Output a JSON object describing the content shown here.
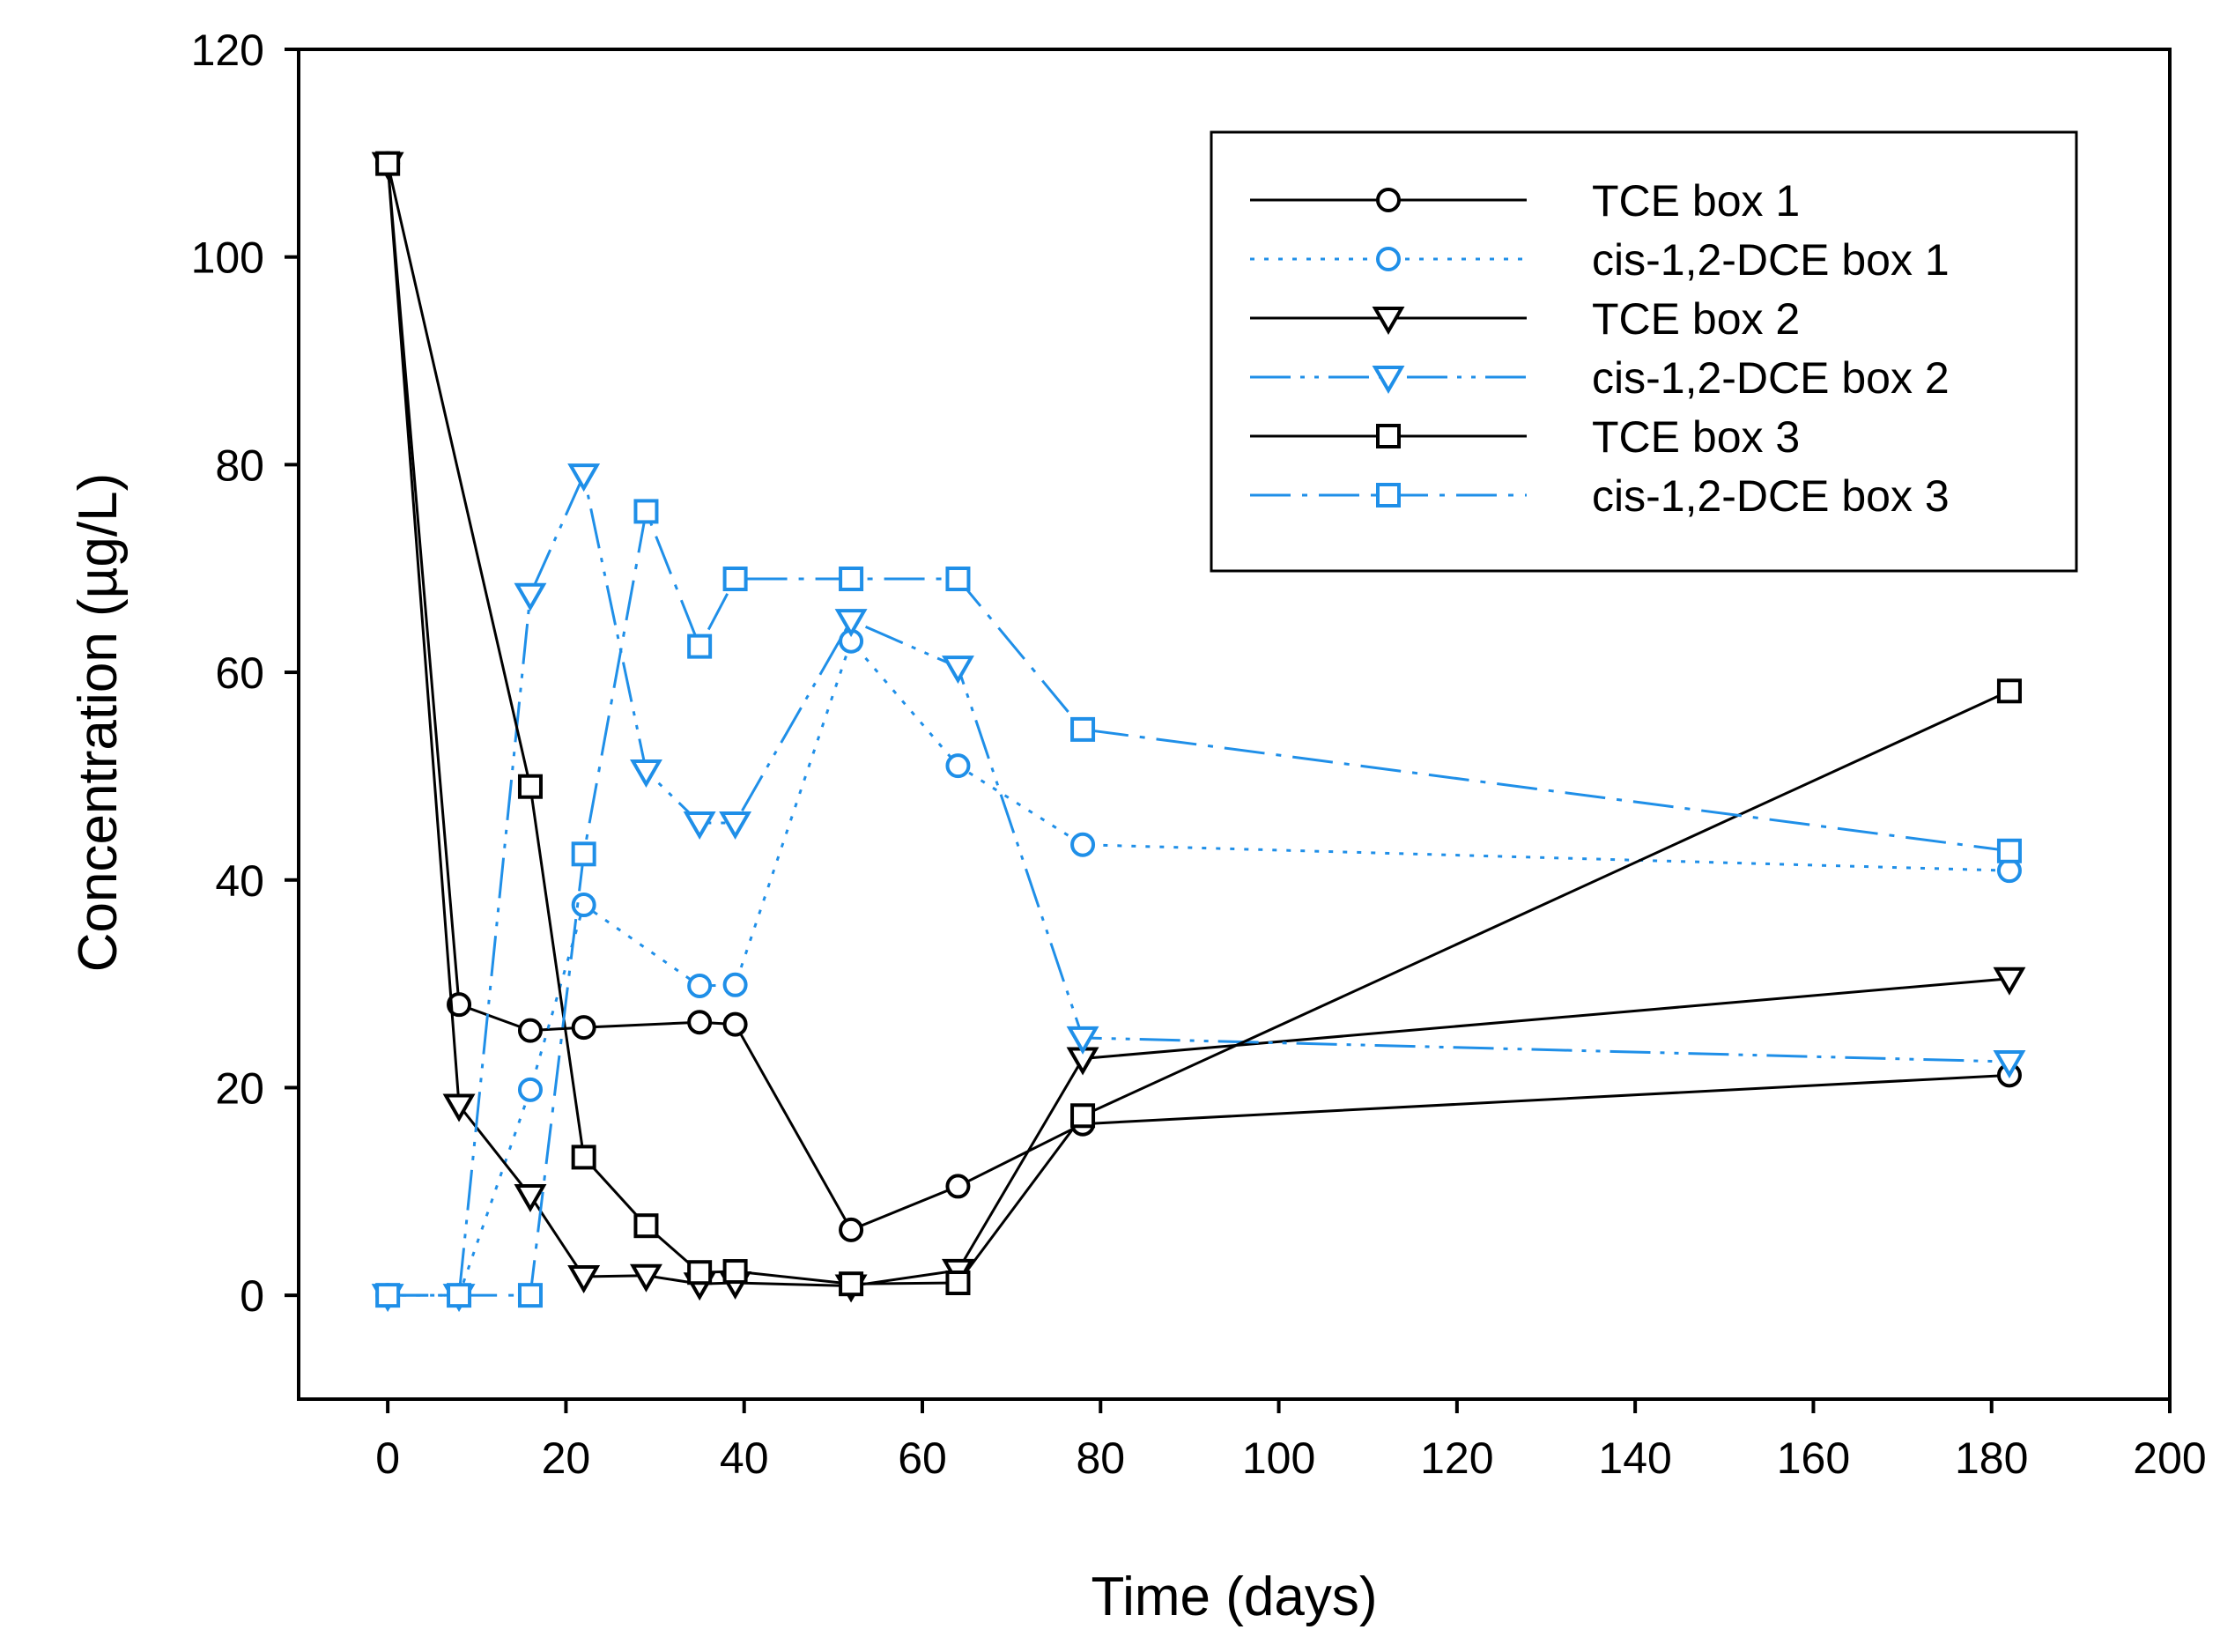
{
  "chart_data": {
    "type": "line",
    "title": "",
    "xlabel": "Time (days)",
    "ylabel": "Concentration (µg/L)",
    "xlim": [
      -10,
      200
    ],
    "ylim": [
      -10,
      120
    ],
    "xticks": [
      0,
      20,
      40,
      60,
      80,
      100,
      120,
      140,
      160,
      180,
      200
    ],
    "yticks": [
      0,
      20,
      40,
      60,
      80,
      100,
      120
    ],
    "xtick_labels": [
      "0",
      "20",
      "40",
      "60",
      "80",
      "100",
      "120",
      "140",
      "160",
      "180",
      "200"
    ],
    "ytick_labels": [
      "0",
      "20",
      "40",
      "60",
      "80",
      "100",
      "120"
    ],
    "grid": false,
    "legend_position": "top-right",
    "series": [
      {
        "name": "TCE box 1",
        "color": "#000000",
        "line_style": "solid",
        "marker": "circle",
        "x": [
          0,
          8,
          16,
          22,
          35,
          39,
          52,
          64,
          78,
          182
        ],
        "y": [
          109,
          28,
          25.5,
          25.8,
          26.3,
          26.1,
          6.3,
          10.5,
          16.5,
          21.2
        ]
      },
      {
        "name": "cis-1,2-DCE box 1",
        "color": "#1f8fe8",
        "line_style": "dotted",
        "marker": "circle",
        "x": [
          0,
          8,
          16,
          22,
          35,
          39,
          52,
          64,
          78,
          182
        ],
        "y": [
          0,
          0,
          19.8,
          37.6,
          29.8,
          29.9,
          63,
          51,
          43.4,
          40.9
        ]
      },
      {
        "name": "TCE box 2",
        "color": "#000000",
        "line_style": "solid",
        "marker": "triangle-down",
        "x": [
          0,
          8,
          16,
          22,
          29,
          35,
          39,
          52,
          64,
          78,
          182
        ],
        "y": [
          109,
          18.3,
          9.6,
          1.8,
          1.9,
          1.1,
          1.2,
          0.9,
          2.4,
          22.8,
          30.5
        ]
      },
      {
        "name": "cis-1,2-DCE box 2",
        "color": "#1f8fe8",
        "line_style": "dash-dot-dot",
        "marker": "triangle-down",
        "x": [
          0,
          8,
          16,
          22,
          29,
          35,
          39,
          52,
          64,
          78,
          182
        ],
        "y": [
          0,
          0,
          67.5,
          79,
          50.5,
          45.5,
          45.5,
          65,
          60.5,
          24.8,
          22.5
        ]
      },
      {
        "name": "TCE box 3",
        "color": "#000000",
        "line_style": "solid",
        "marker": "square",
        "x": [
          0,
          16,
          22,
          29,
          35,
          39,
          52,
          64,
          78,
          182
        ],
        "y": [
          109,
          49,
          13.3,
          6.7,
          2.2,
          2.3,
          1.1,
          1.2,
          17.3,
          58.2
        ]
      },
      {
        "name": "cis-1,2-DCE box 3",
        "color": "#1f8fe8",
        "line_style": "dash-dot",
        "marker": "square",
        "x": [
          0,
          8,
          16,
          22,
          29,
          35,
          39,
          52,
          64,
          78,
          182
        ],
        "y": [
          0,
          0,
          0,
          42.5,
          75.5,
          62.5,
          69,
          69,
          69,
          54.5,
          42.8
        ]
      }
    ]
  }
}
